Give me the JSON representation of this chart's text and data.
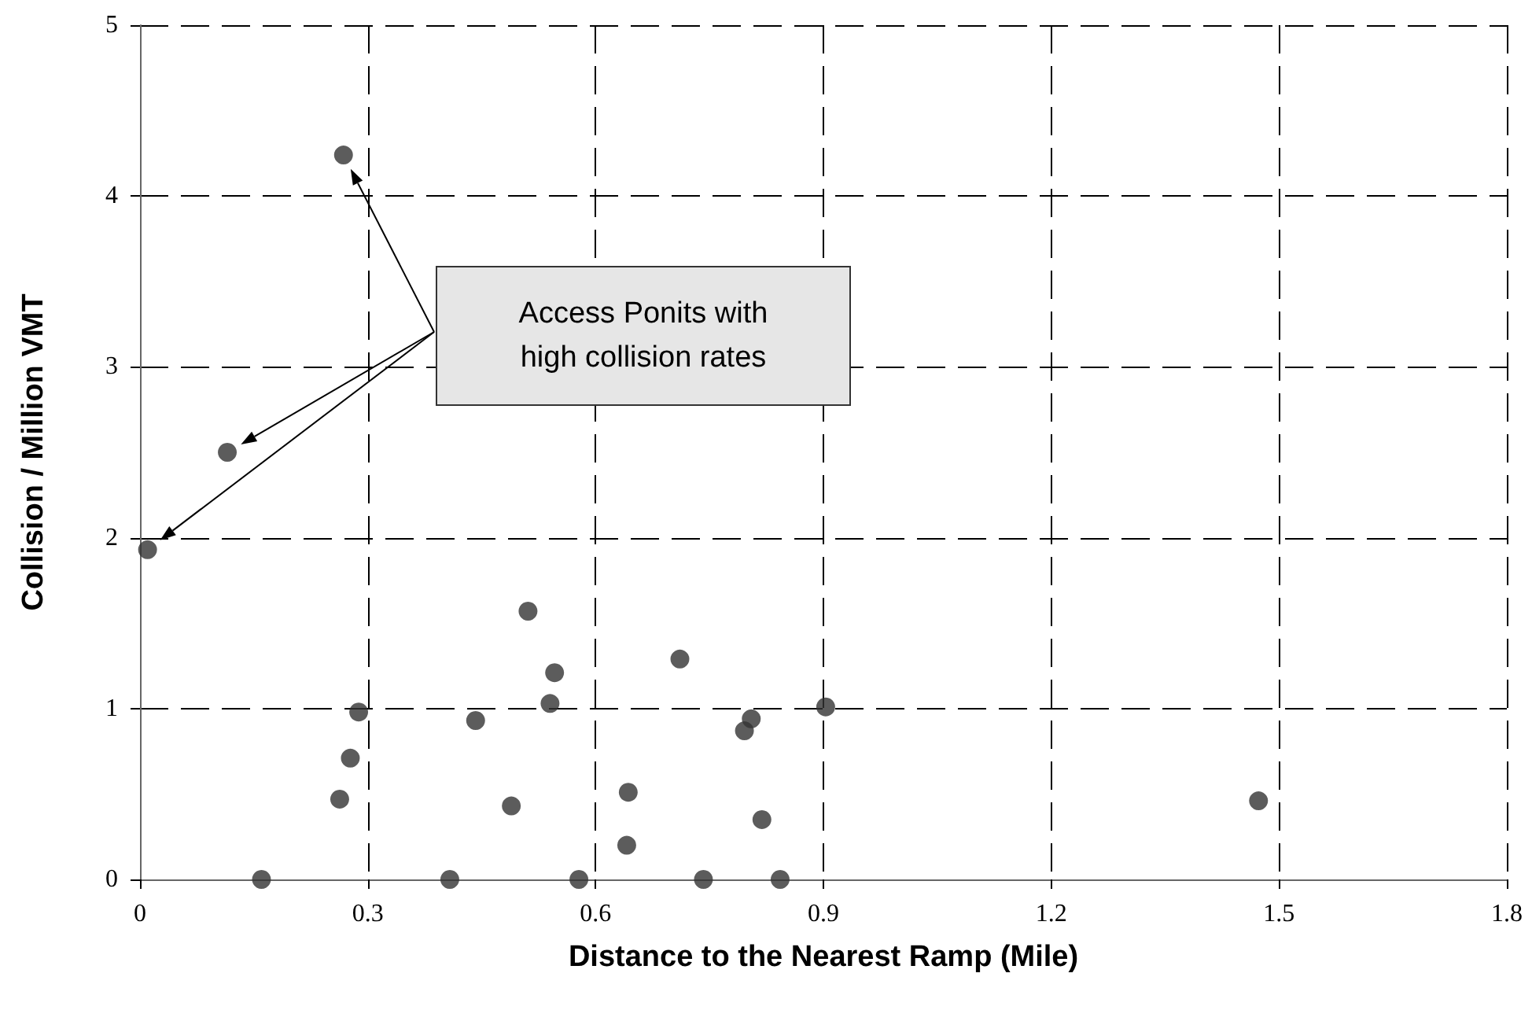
{
  "chart_data": {
    "type": "scatter",
    "xlabel": "Distance to the Nearest Ramp (Mile)",
    "ylabel": "Collision / Million VMT",
    "x": [
      0.268,
      0.115,
      0.01,
      0.16,
      0.408,
      0.578,
      0.742,
      0.843,
      0.263,
      0.277,
      0.288,
      0.442,
      0.489,
      0.511,
      0.546,
      0.54,
      0.643,
      0.641,
      0.711,
      0.796,
      0.805,
      0.819,
      0.903,
      1.473
    ],
    "values": [
      4.24,
      2.5,
      1.93,
      0,
      0,
      0,
      0,
      0,
      0.47,
      0.71,
      0.98,
      0.93,
      0.43,
      1.57,
      1.21,
      1.03,
      0.51,
      0.2,
      1.29,
      0.87,
      0.94,
      0.35,
      1.01,
      0.46
    ],
    "color": "#333333",
    "marker": "circle",
    "xlim": [
      0,
      1.8
    ],
    "xticks": [
      0,
      0.3,
      0.6,
      0.9,
      1.2,
      1.5,
      1.8
    ],
    "ylim": [
      0,
      5
    ],
    "yticks": [
      0,
      1,
      2,
      3,
      4,
      5
    ],
    "grid": true,
    "annotations": [
      "Access Ponits with high collision rates"
    ]
  }
}
